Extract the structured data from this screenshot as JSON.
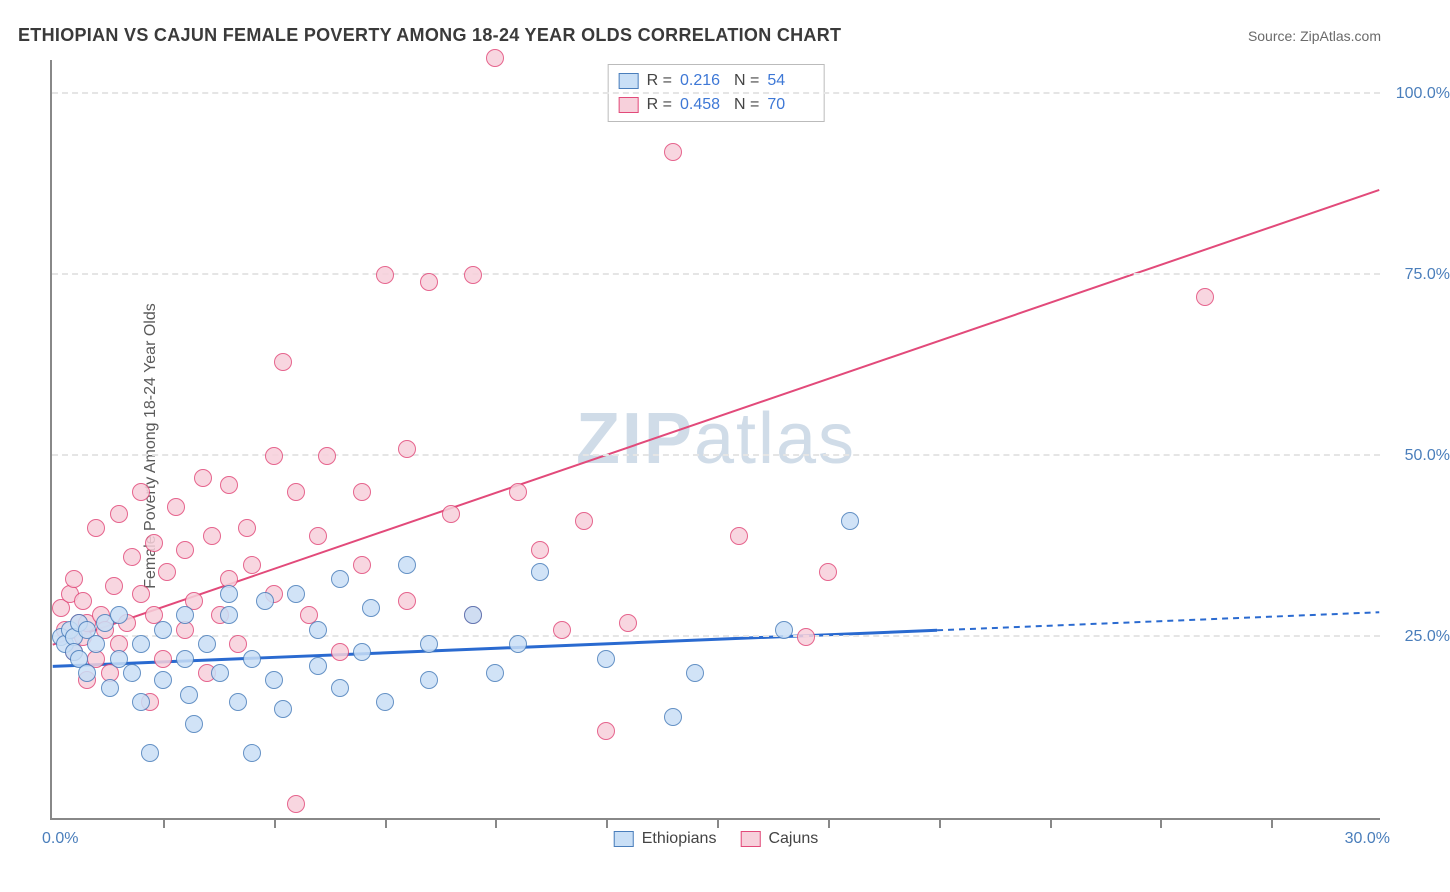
{
  "title": "ETHIOPIAN VS CAJUN FEMALE POVERTY AMONG 18-24 YEAR OLDS CORRELATION CHART",
  "source": "Source: ZipAtlas.com",
  "ylabel": "Female Poverty Among 18-24 Year Olds",
  "watermark_a": "ZIP",
  "watermark_b": "atlas",
  "chart": {
    "type": "scatter",
    "xlim": [
      0,
      30
    ],
    "ylim": [
      0,
      105
    ],
    "xtick_positions": [
      2.5,
      5,
      7.5,
      10,
      12.5,
      15,
      17.5,
      20,
      22.5,
      25,
      27.5
    ],
    "ytick_positions": [
      25,
      50,
      75,
      100
    ],
    "ytick_labels": [
      "25.0%",
      "50.0%",
      "75.0%",
      "100.0%"
    ],
    "xlim_labels": [
      "0.0%",
      "30.0%"
    ],
    "grid_color": "#e5e5e5",
    "axis_color": "#888888",
    "background_color": "#ffffff",
    "marker_radius": 9,
    "series": [
      {
        "name": "Ethiopians",
        "fill": "#c9dff6",
        "stroke": "#4a7ebb",
        "r_value": "0.216",
        "n_value": "54",
        "regression": {
          "x1": 0,
          "y1": 21,
          "x2": 20,
          "y2": 26,
          "x2_ext": 30,
          "y2_ext": 28.5,
          "stroke": "#2a6ad0",
          "width": 3
        },
        "points": [
          [
            0.2,
            25
          ],
          [
            0.3,
            24
          ],
          [
            0.4,
            26
          ],
          [
            0.5,
            25
          ],
          [
            0.5,
            23
          ],
          [
            0.6,
            27
          ],
          [
            0.6,
            22
          ],
          [
            0.8,
            26
          ],
          [
            0.8,
            20
          ],
          [
            1.0,
            24
          ],
          [
            1.2,
            27
          ],
          [
            1.3,
            18
          ],
          [
            1.5,
            22
          ],
          [
            1.5,
            28
          ],
          [
            1.8,
            20
          ],
          [
            2.0,
            24
          ],
          [
            2.0,
            16
          ],
          [
            2.2,
            9
          ],
          [
            2.5,
            26
          ],
          [
            2.5,
            19
          ],
          [
            3.0,
            22
          ],
          [
            3.0,
            28
          ],
          [
            3.1,
            17
          ],
          [
            3.2,
            13
          ],
          [
            3.5,
            24
          ],
          [
            3.8,
            20
          ],
          [
            4.0,
            31
          ],
          [
            4.0,
            28
          ],
          [
            4.2,
            16
          ],
          [
            4.5,
            22
          ],
          [
            4.5,
            9
          ],
          [
            4.8,
            30
          ],
          [
            5.0,
            19
          ],
          [
            5.2,
            15
          ],
          [
            5.5,
            31
          ],
          [
            6.0,
            26
          ],
          [
            6.0,
            21
          ],
          [
            6.5,
            18
          ],
          [
            6.5,
            33
          ],
          [
            7.0,
            23
          ],
          [
            7.2,
            29
          ],
          [
            7.5,
            16
          ],
          [
            8.0,
            35
          ],
          [
            8.5,
            24
          ],
          [
            8.5,
            19
          ],
          [
            9.5,
            28
          ],
          [
            10.0,
            20
          ],
          [
            10.5,
            24
          ],
          [
            11.0,
            34
          ],
          [
            12.5,
            22
          ],
          [
            14.0,
            14
          ],
          [
            14.5,
            20
          ],
          [
            16.5,
            26
          ],
          [
            18.0,
            41
          ]
        ]
      },
      {
        "name": "Cajuns",
        "fill": "#f7d0db",
        "stroke": "#e24a7a",
        "r_value": "0.458",
        "n_value": "70",
        "regression": {
          "x1": 0,
          "y1": 24,
          "x2": 30,
          "y2": 87,
          "stroke": "#e24a7a",
          "width": 2
        },
        "points": [
          [
            0.2,
            29
          ],
          [
            0.3,
            26
          ],
          [
            0.4,
            31
          ],
          [
            0.5,
            23
          ],
          [
            0.5,
            33
          ],
          [
            0.6,
            27
          ],
          [
            0.7,
            25
          ],
          [
            0.7,
            30
          ],
          [
            0.8,
            19
          ],
          [
            0.8,
            27
          ],
          [
            1.0,
            40
          ],
          [
            1.0,
            22
          ],
          [
            1.1,
            28
          ],
          [
            1.2,
            26
          ],
          [
            1.3,
            20
          ],
          [
            1.4,
            32
          ],
          [
            1.5,
            42
          ],
          [
            1.5,
            24
          ],
          [
            1.7,
            27
          ],
          [
            1.8,
            36
          ],
          [
            2.0,
            31
          ],
          [
            2.0,
            45
          ],
          [
            2.2,
            16
          ],
          [
            2.3,
            28
          ],
          [
            2.3,
            38
          ],
          [
            2.5,
            22
          ],
          [
            2.6,
            34
          ],
          [
            2.8,
            43
          ],
          [
            3.0,
            37
          ],
          [
            3.0,
            26
          ],
          [
            3.2,
            30
          ],
          [
            3.4,
            47
          ],
          [
            3.5,
            20
          ],
          [
            3.6,
            39
          ],
          [
            3.8,
            28
          ],
          [
            4.0,
            46
          ],
          [
            4.0,
            33
          ],
          [
            4.2,
            24
          ],
          [
            4.4,
            40
          ],
          [
            4.5,
            35
          ],
          [
            5.0,
            50
          ],
          [
            5.0,
            31
          ],
          [
            5.2,
            63
          ],
          [
            5.5,
            45
          ],
          [
            5.5,
            2
          ],
          [
            5.8,
            28
          ],
          [
            6.0,
            39
          ],
          [
            6.2,
            50
          ],
          [
            6.5,
            23
          ],
          [
            7.0,
            45
          ],
          [
            7.0,
            35
          ],
          [
            7.5,
            75
          ],
          [
            8.0,
            51
          ],
          [
            8.0,
            30
          ],
          [
            8.5,
            74
          ],
          [
            9.0,
            42
          ],
          [
            9.5,
            28
          ],
          [
            9.5,
            75
          ],
          [
            10.0,
            105
          ],
          [
            10.5,
            45
          ],
          [
            11.0,
            37
          ],
          [
            11.5,
            26
          ],
          [
            12.0,
            41
          ],
          [
            12.5,
            12
          ],
          [
            13.0,
            27
          ],
          [
            14.0,
            92
          ],
          [
            15.5,
            39
          ],
          [
            17.0,
            25
          ],
          [
            17.5,
            34
          ],
          [
            26.0,
            72
          ]
        ]
      }
    ]
  },
  "stats_labels": {
    "r": "R  =",
    "n": "N  ="
  },
  "legend_labels": [
    "Ethiopians",
    "Cajuns"
  ]
}
